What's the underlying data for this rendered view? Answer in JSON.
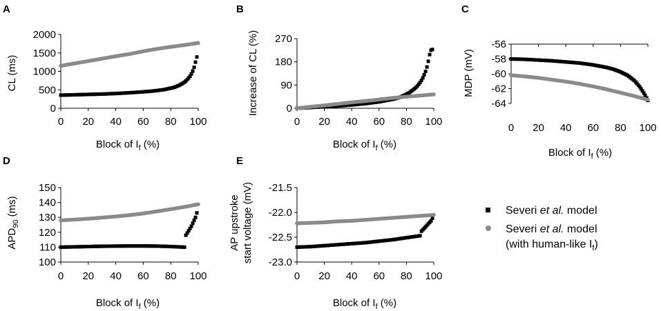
{
  "chart_data": [
    {
      "panel": "A",
      "type": "scatter",
      "xlabel": "Block of I",
      "xlabel_sub": "f",
      "xlabel_suffix": " (%)",
      "ylabel": "CL (ms)",
      "xlim": [
        0,
        100
      ],
      "ylim": [
        0,
        2000
      ],
      "xticks": [
        0,
        20,
        40,
        60,
        80,
        100
      ],
      "yticks": [
        0,
        500,
        1000,
        1500,
        2000
      ],
      "series": [
        {
          "name": "Severi et al. model",
          "color": "#000000",
          "marker": "square",
          "x": [
            0,
            10,
            20,
            30,
            40,
            50,
            60,
            65,
            70,
            75,
            80,
            82,
            84,
            86,
            88,
            90,
            91,
            92,
            93,
            94,
            95,
            96,
            97,
            98,
            99
          ],
          "y": [
            355,
            365,
            375,
            385,
            400,
            420,
            445,
            460,
            480,
            505,
            545,
            560,
            590,
            620,
            660,
            710,
            740,
            780,
            820,
            870,
            930,
            1010,
            1110,
            1250,
            1390
          ]
        },
        {
          "name": "Severi et al. model (with human-like If)",
          "color": "#8a8a8a",
          "marker": "circle",
          "x": [
            0,
            10,
            20,
            30,
            40,
            50,
            60,
            70,
            80,
            90,
            100
          ],
          "y": [
            1150,
            1215,
            1280,
            1345,
            1410,
            1470,
            1545,
            1610,
            1665,
            1715,
            1770
          ]
        }
      ]
    },
    {
      "panel": "B",
      "type": "scatter",
      "xlabel": "Block of I",
      "xlabel_sub": "f",
      "xlabel_suffix": " (%)",
      "ylabel": "Increase of CL (%)",
      "xlim": [
        0,
        100
      ],
      "ylim": [
        0,
        270
      ],
      "xticks": [
        0,
        20,
        40,
        60,
        80,
        100
      ],
      "yticks": [
        0,
        90,
        180,
        270
      ],
      "series": [
        {
          "name": "Severi et al. model",
          "color": "#000000",
          "marker": "square",
          "x": [
            0,
            10,
            20,
            30,
            40,
            50,
            60,
            65,
            70,
            75,
            80,
            82,
            84,
            86,
            88,
            90,
            91,
            92,
            93,
            94,
            95,
            96,
            97,
            98,
            99
          ],
          "y": [
            0,
            3,
            6,
            9,
            13,
            18,
            25,
            30,
            35,
            42,
            54,
            60,
            68,
            76,
            86,
            100,
            108,
            118,
            130,
            143,
            160,
            182,
            208,
            225,
            228
          ]
        },
        {
          "name": "Severi et al. model (with human-like If)",
          "color": "#8a8a8a",
          "marker": "circle",
          "x": [
            0,
            10,
            20,
            30,
            40,
            50,
            60,
            70,
            80,
            90,
            100
          ],
          "y": [
            0,
            6,
            11,
            17,
            23,
            28,
            34,
            40,
            45,
            49,
            54
          ]
        }
      ]
    },
    {
      "panel": "C",
      "type": "scatter",
      "xlabel": "Block of I",
      "xlabel_sub": "f",
      "xlabel_suffix": " (%)",
      "ylabel": "MDP (mV)",
      "xlim": [
        0,
        100
      ],
      "ylim": [
        -64,
        -56
      ],
      "yaxis_at_top": true,
      "xticks": [
        0,
        20,
        40,
        60,
        80,
        100
      ],
      "yticks": [
        -56,
        -58,
        -60,
        -62,
        -64
      ],
      "series": [
        {
          "name": "Severi et al. model",
          "color": "#000000",
          "marker": "square",
          "x": [
            0,
            10,
            20,
            30,
            40,
            50,
            60,
            70,
            75,
            80,
            85,
            90,
            92,
            94,
            96,
            98,
            100
          ],
          "y": [
            -58.0,
            -58.05,
            -58.15,
            -58.25,
            -58.4,
            -58.55,
            -58.8,
            -59.15,
            -59.4,
            -59.75,
            -60.2,
            -60.9,
            -61.3,
            -61.75,
            -62.3,
            -62.9,
            -63.6
          ]
        },
        {
          "name": "Severi et al. model (with human-like If)",
          "color": "#8a8a8a",
          "marker": "circle",
          "x": [
            0,
            10,
            20,
            30,
            40,
            50,
            60,
            70,
            80,
            90,
            100
          ],
          "y": [
            -60.2,
            -60.35,
            -60.55,
            -60.8,
            -61.05,
            -61.35,
            -61.7,
            -62.1,
            -62.55,
            -63.0,
            -63.5
          ]
        }
      ]
    },
    {
      "panel": "D",
      "type": "scatter",
      "xlabel": "Block of I",
      "xlabel_sub": "f",
      "xlabel_suffix": " (%)",
      "ylabel": "APD",
      "ylabel_sub": "90",
      "ylabel_suffix": " (ms)",
      "xlim": [
        0,
        100
      ],
      "ylim": [
        100,
        150
      ],
      "xticks": [
        0,
        20,
        40,
        60,
        80,
        100
      ],
      "yticks": [
        100,
        110,
        120,
        130,
        140,
        150
      ],
      "series": [
        {
          "name": "Severi et al. model",
          "color": "#000000",
          "marker": "square",
          "x": [
            0,
            10,
            20,
            30,
            40,
            50,
            60,
            70,
            80,
            85,
            90,
            91,
            92,
            93,
            94,
            95,
            96,
            97,
            98,
            99
          ],
          "y": [
            110,
            110.2,
            110.4,
            110.6,
            110.7,
            110.8,
            110.8,
            110.7,
            110.4,
            110.2,
            110,
            118,
            119.5,
            121,
            122.5,
            124,
            126,
            128,
            130,
            133
          ]
        },
        {
          "name": "Severi et al. model (with human-like If)",
          "color": "#8a8a8a",
          "marker": "circle",
          "x": [
            0,
            10,
            20,
            30,
            40,
            50,
            60,
            70,
            80,
            90,
            100
          ],
          "y": [
            128.0,
            128.5,
            129.1,
            129.8,
            130.6,
            131.5,
            132.6,
            134.0,
            135.5,
            137.0,
            138.8
          ]
        }
      ]
    },
    {
      "panel": "E",
      "type": "scatter",
      "xlabel": "Block of I",
      "xlabel_sub": "f",
      "xlabel_suffix": " (%)",
      "ylabel_line1": "AP upstroke",
      "ylabel_line2": "start voltage (mV)",
      "xlim": [
        0,
        100
      ],
      "ylim": [
        -23.0,
        -21.5
      ],
      "xticks": [
        0,
        20,
        40,
        60,
        80,
        100
      ],
      "yticks": [
        -21.5,
        -22.0,
        -22.5,
        -23.0
      ],
      "ytick_labels": [
        "-21.5",
        "-22.0",
        "-22.5",
        "-23.0"
      ],
      "series": [
        {
          "name": "Severi et al. model",
          "color": "#000000",
          "marker": "square",
          "x": [
            0,
            10,
            20,
            30,
            40,
            50,
            60,
            70,
            80,
            85,
            90,
            91,
            92,
            93,
            94,
            95,
            96,
            97,
            98,
            99
          ],
          "y": [
            -22.7,
            -22.69,
            -22.67,
            -22.65,
            -22.63,
            -22.61,
            -22.58,
            -22.55,
            -22.51,
            -22.49,
            -22.47,
            -22.38,
            -22.35,
            -22.32,
            -22.29,
            -22.26,
            -22.23,
            -22.2,
            -22.17,
            -22.12
          ]
        },
        {
          "name": "Severi et al. model (with human-like If)",
          "color": "#8a8a8a",
          "marker": "circle",
          "x": [
            0,
            10,
            20,
            30,
            40,
            50,
            60,
            70,
            80,
            90,
            100
          ],
          "y": [
            -22.22,
            -22.21,
            -22.2,
            -22.18,
            -22.17,
            -22.15,
            -22.13,
            -22.11,
            -22.09,
            -22.07,
            -22.05
          ]
        }
      ]
    }
  ],
  "legend": {
    "items": [
      {
        "prefix": "Severi ",
        "italic": "et al.",
        "suffix": " model",
        "color": "#000000",
        "marker": "square"
      },
      {
        "prefix": "Severi ",
        "italic": "et al.",
        "suffix": " model",
        "line2_prefix": "(with human-like I",
        "line2_sub": "f",
        "line2_suffix": ")",
        "color": "#8a8a8a",
        "marker": "circle"
      }
    ]
  }
}
